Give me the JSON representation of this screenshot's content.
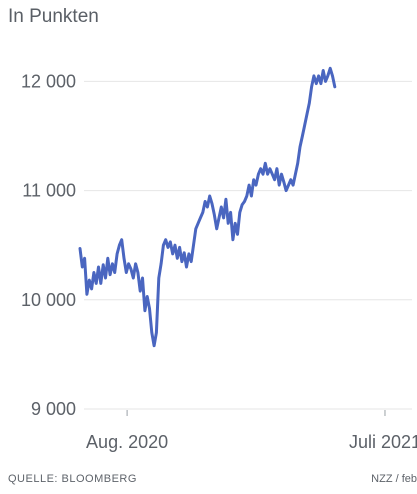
{
  "chart_data": {
    "type": "line",
    "subtitle": "In Punkten",
    "ylabel": "",
    "xlabel": "",
    "ylim": [
      9000,
      12150
    ],
    "yticks": [
      {
        "value": 9000,
        "label": "9 000"
      },
      {
        "value": 10000,
        "label": "10 000"
      },
      {
        "value": 11000,
        "label": "11 000"
      },
      {
        "value": 12000,
        "label": "12 000"
      }
    ],
    "xticks": [
      {
        "date": "2020-08-01",
        "label": "Aug. 2020"
      },
      {
        "date": "2021-07-01",
        "label": "Juli 2021"
      }
    ],
    "xlim": [
      "2020-06-01",
      "2021-08-05"
    ],
    "grid": true,
    "color": "#4a66c0",
    "series": [
      {
        "values": [
          [
            "2020-06-01",
            10470
          ],
          [
            "2020-06-04",
            10300
          ],
          [
            "2020-06-07",
            10380
          ],
          [
            "2020-06-10",
            10050
          ],
          [
            "2020-06-13",
            10180
          ],
          [
            "2020-06-16",
            10100
          ],
          [
            "2020-06-19",
            10250
          ],
          [
            "2020-06-22",
            10150
          ],
          [
            "2020-06-25",
            10300
          ],
          [
            "2020-06-28",
            10150
          ],
          [
            "2020-07-01",
            10320
          ],
          [
            "2020-07-04",
            10200
          ],
          [
            "2020-07-07",
            10380
          ],
          [
            "2020-07-10",
            10230
          ],
          [
            "2020-07-13",
            10330
          ],
          [
            "2020-07-16",
            10250
          ],
          [
            "2020-07-19",
            10420
          ],
          [
            "2020-07-22",
            10500
          ],
          [
            "2020-07-25",
            10550
          ],
          [
            "2020-07-28",
            10380
          ],
          [
            "2020-07-31",
            10250
          ],
          [
            "2020-08-03",
            10330
          ],
          [
            "2020-08-06",
            10280
          ],
          [
            "2020-08-09",
            10200
          ],
          [
            "2020-08-12",
            10330
          ],
          [
            "2020-08-15",
            10250
          ],
          [
            "2020-08-18",
            10080
          ],
          [
            "2020-08-21",
            10200
          ],
          [
            "2020-08-24",
            9900
          ],
          [
            "2020-08-27",
            10030
          ],
          [
            "2020-08-30",
            9920
          ],
          [
            "2020-09-02",
            9700
          ],
          [
            "2020-09-05",
            9580
          ],
          [
            "2020-09-08",
            9700
          ],
          [
            "2020-09-11",
            10200
          ],
          [
            "2020-09-14",
            10330
          ],
          [
            "2020-09-17",
            10500
          ],
          [
            "2020-09-20",
            10550
          ],
          [
            "2020-09-23",
            10480
          ],
          [
            "2020-09-26",
            10530
          ],
          [
            "2020-09-29",
            10420
          ],
          [
            "2020-10-02",
            10500
          ],
          [
            "2020-10-05",
            10380
          ],
          [
            "2020-10-08",
            10480
          ],
          [
            "2020-10-11",
            10350
          ],
          [
            "2020-10-14",
            10430
          ],
          [
            "2020-10-17",
            10300
          ],
          [
            "2020-10-20",
            10420
          ],
          [
            "2020-10-23",
            10350
          ],
          [
            "2020-10-26",
            10500
          ],
          [
            "2020-10-29",
            10650
          ],
          [
            "2020-11-01",
            10700
          ],
          [
            "2020-11-04",
            10750
          ],
          [
            "2020-11-07",
            10800
          ],
          [
            "2020-11-10",
            10900
          ],
          [
            "2020-11-13",
            10850
          ],
          [
            "2020-11-16",
            10950
          ],
          [
            "2020-11-19",
            10880
          ],
          [
            "2020-11-22",
            10780
          ],
          [
            "2020-11-25",
            10650
          ],
          [
            "2020-11-28",
            10750
          ],
          [
            "2020-12-01",
            10850
          ],
          [
            "2020-12-04",
            10750
          ],
          [
            "2020-12-07",
            10920
          ],
          [
            "2020-12-10",
            10700
          ],
          [
            "2020-12-13",
            10800
          ],
          [
            "2020-12-16",
            10550
          ],
          [
            "2020-12-19",
            10700
          ],
          [
            "2020-12-22",
            10600
          ],
          [
            "2020-12-25",
            10800
          ],
          [
            "2020-12-28",
            10870
          ],
          [
            "2020-12-31",
            10900
          ],
          [
            "2021-01-03",
            10950
          ],
          [
            "2021-01-06",
            11050
          ],
          [
            "2021-01-09",
            10950
          ],
          [
            "2021-01-12",
            11100
          ],
          [
            "2021-01-15",
            11050
          ],
          [
            "2021-01-18",
            11150
          ],
          [
            "2021-01-21",
            11200
          ],
          [
            "2021-01-24",
            11150
          ],
          [
            "2021-01-27",
            11250
          ],
          [
            "2021-01-30",
            11150
          ],
          [
            "2021-02-02",
            11200
          ],
          [
            "2021-02-05",
            11150
          ],
          [
            "2021-02-08",
            11100
          ],
          [
            "2021-02-11",
            11200
          ],
          [
            "2021-02-14",
            11050
          ],
          [
            "2021-02-17",
            11150
          ],
          [
            "2021-02-20",
            11080
          ],
          [
            "2021-02-23",
            11000
          ],
          [
            "2021-02-26",
            11050
          ],
          [
            "2021-03-01",
            11100
          ],
          [
            "2021-03-04",
            11050
          ],
          [
            "2021-03-07",
            11150
          ],
          [
            "2021-03-10",
            11250
          ],
          [
            "2021-03-13",
            11400
          ],
          [
            "2021-03-16",
            11500
          ],
          [
            "2021-03-19",
            11600
          ],
          [
            "2021-03-22",
            11700
          ],
          [
            "2021-03-25",
            11800
          ],
          [
            "2021-03-28",
            11950
          ],
          [
            "2021-03-31",
            12050
          ],
          [
            "2021-04-03",
            11980
          ],
          [
            "2021-04-06",
            12050
          ],
          [
            "2021-04-09",
            11980
          ],
          [
            "2021-04-12",
            12100
          ],
          [
            "2021-04-15",
            12000
          ],
          [
            "2021-04-18",
            12050
          ],
          [
            "2021-04-21",
            12120
          ],
          [
            "2021-04-24",
            12050
          ],
          [
            "2021-04-27",
            11950
          ]
        ]
      }
    ]
  },
  "source": "QUELLE: BLOOMBERG",
  "credit": "NZZ / feb"
}
